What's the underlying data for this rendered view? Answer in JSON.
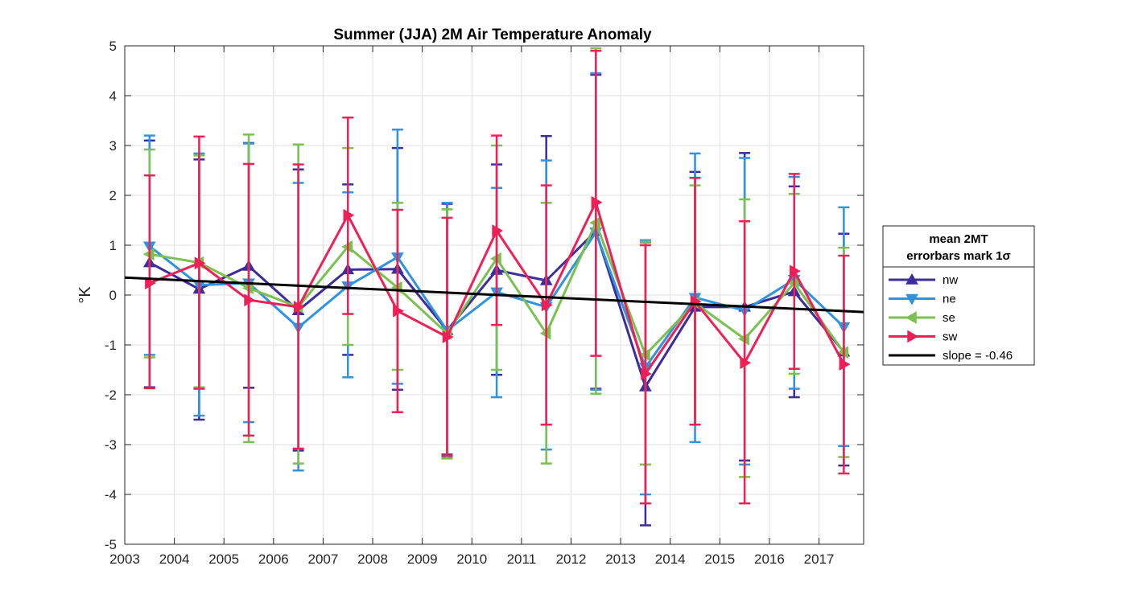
{
  "chart_data": {
    "type": "line",
    "title": "Summer (JJA) 2M Air Temperature Anomaly",
    "ylabel": "°K",
    "xlabel": "",
    "xlim": [
      2003,
      2017.9
    ],
    "ylim": [
      -5,
      5
    ],
    "xticks": [
      "2003",
      "2004",
      "2005",
      "2006",
      "2007",
      "2008",
      "2009",
      "2010",
      "2011",
      "2012",
      "2013",
      "2014",
      "2015",
      "2016",
      "2017"
    ],
    "yticks": [
      "-5",
      "-4",
      "-3",
      "-2",
      "-1",
      "0",
      "1",
      "2",
      "3",
      "4",
      "5"
    ],
    "grid": true,
    "legend_position": "right",
    "legend_title": [
      "mean 2MT",
      "errorbars mark 1σ"
    ],
    "x": [
      2003.5,
      2004.5,
      2005.5,
      2006.5,
      2007.5,
      2008.5,
      2009.5,
      2010.5,
      2011.5,
      2012.5,
      2013.5,
      2014.5,
      2015.5,
      2016.5,
      2017.5
    ],
    "series": [
      {
        "name": "nw",
        "color": "#3d2c9e",
        "marker": "triangle-up",
        "values": [
          0.65,
          0.12,
          0.58,
          -0.31,
          0.51,
          0.52,
          -0.71,
          0.5,
          0.29,
          1.28,
          -1.84,
          -0.24,
          -0.24,
          0.07,
          -1.14
        ],
        "upper": [
          3.1,
          2.72,
          3.05,
          2.52,
          2.22,
          2.95,
          1.83,
          2.62,
          3.19,
          4.42,
          1.06,
          2.47,
          2.85,
          2.18,
          1.23
        ],
        "lower": [
          -1.85,
          -2.5,
          -1.86,
          -3.12,
          -1.2,
          -1.9,
          -3.2,
          -1.6,
          -2.6,
          -1.88,
          -4.62,
          -2.6,
          -3.32,
          -2.05,
          -3.42
        ]
      },
      {
        "name": "ne",
        "color": "#2e93e0",
        "marker": "triangle-down",
        "values": [
          0.98,
          0.2,
          0.24,
          -0.65,
          0.18,
          0.76,
          -0.71,
          0.06,
          -0.24,
          1.26,
          -1.45,
          -0.05,
          -0.31,
          0.31,
          -0.64
        ],
        "upper": [
          3.2,
          2.84,
          3.04,
          2.25,
          2.06,
          3.32,
          1.85,
          2.15,
          2.7,
          4.45,
          1.1,
          2.84,
          2.75,
          2.37,
          1.76
        ],
        "lower": [
          -1.2,
          -2.42,
          -2.55,
          -3.52,
          -1.65,
          -1.78,
          -3.25,
          -2.05,
          -3.1,
          -1.9,
          -4.0,
          -2.95,
          -3.4,
          -1.88,
          -3.03
        ]
      },
      {
        "name": "se",
        "color": "#79c150",
        "marker": "triangle-left",
        "values": [
          0.82,
          0.65,
          0.14,
          -0.24,
          0.97,
          0.15,
          -0.77,
          0.73,
          -0.77,
          1.45,
          -1.2,
          -0.16,
          -0.88,
          0.24,
          -1.15
        ],
        "upper": [
          2.92,
          2.8,
          3.22,
          3.02,
          2.95,
          1.85,
          1.72,
          3.0,
          1.85,
          4.95,
          1.07,
          2.2,
          1.92,
          2.03,
          0.95
        ],
        "lower": [
          -1.25,
          -1.85,
          -2.95,
          -3.38,
          -1.0,
          -1.5,
          -3.28,
          -1.5,
          -3.38,
          -1.98,
          -3.4,
          -2.6,
          -3.65,
          -1.58,
          -3.25
        ]
      },
      {
        "name": "sw",
        "color": "#f01f56",
        "marker": "triangle-right",
        "values": [
          0.24,
          0.64,
          -0.1,
          -0.24,
          1.6,
          -0.32,
          -0.84,
          1.29,
          -0.2,
          1.86,
          -1.58,
          -0.13,
          -1.36,
          0.48,
          -1.39
        ],
        "upper": [
          2.4,
          3.18,
          2.63,
          2.62,
          3.56,
          1.71,
          1.55,
          3.2,
          2.2,
          4.9,
          1.0,
          2.35,
          1.48,
          2.43,
          0.79
        ],
        "lower": [
          -1.87,
          -1.88,
          -2.82,
          -3.08,
          -0.38,
          -2.35,
          -3.22,
          -0.6,
          -2.6,
          -1.22,
          -4.18,
          -2.6,
          -4.18,
          -1.48,
          -3.58
        ]
      }
    ],
    "trend": {
      "name": "slope = -0.46",
      "color": "#000000",
      "x": [
        2003,
        2017.9
      ],
      "y": [
        0.35,
        -0.34
      ]
    }
  }
}
